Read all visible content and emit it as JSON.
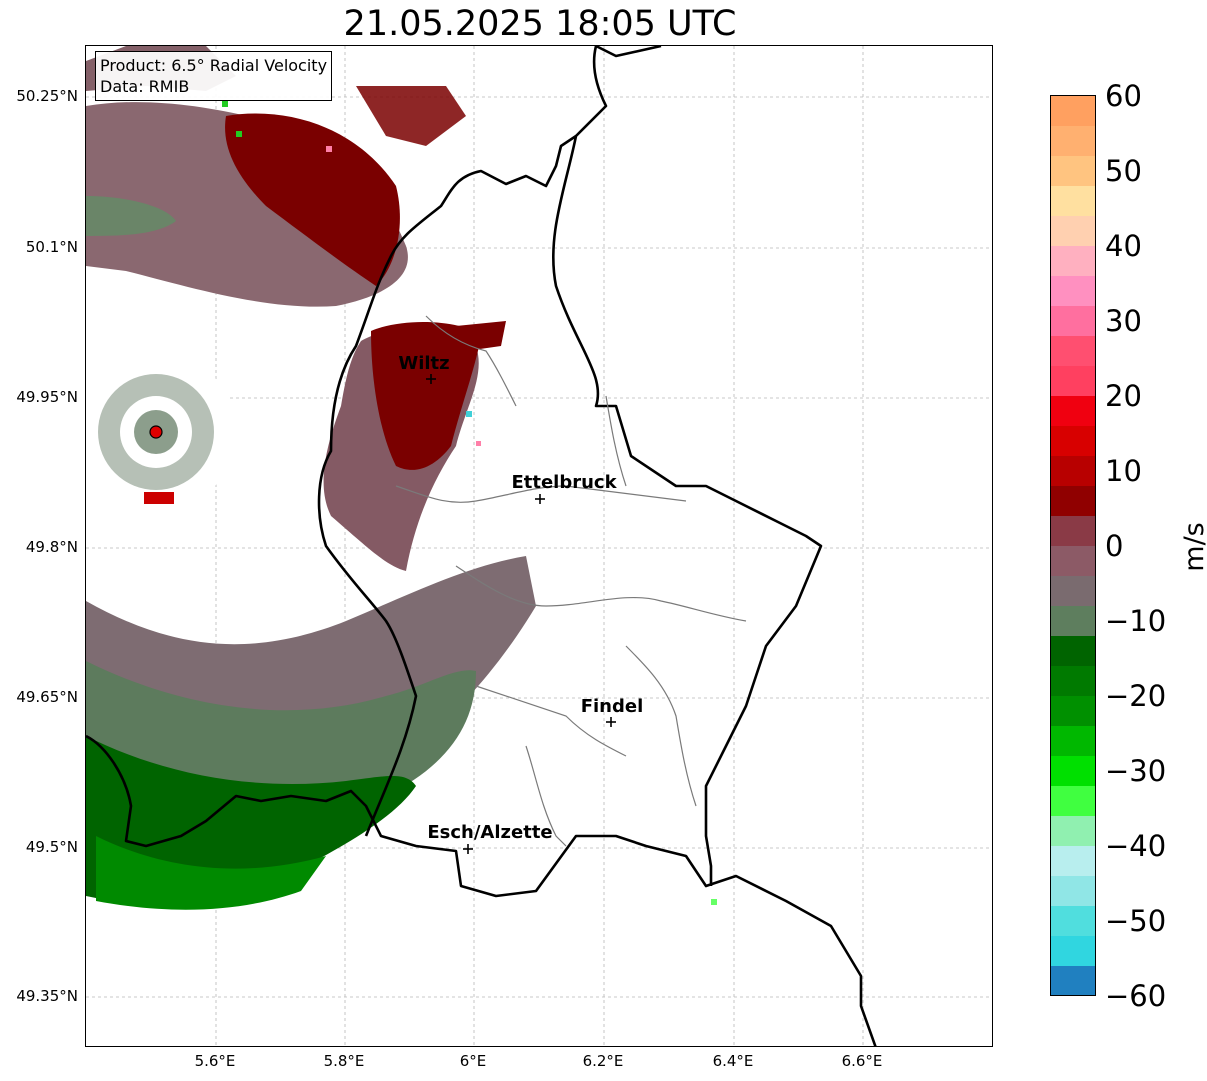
{
  "title": "21.05.2025 18:05 UTC",
  "info": {
    "product": "Product: 6.5° Radial Velocity",
    "data": "Data: RMIB"
  },
  "axes": {
    "y_ticks": [
      "50.25°N",
      "50.1°N",
      "49.95°N",
      "49.8°N",
      "49.65°N",
      "49.5°N",
      "49.35°N"
    ],
    "x_ticks": [
      "5.6°E",
      "5.8°E",
      "6°E",
      "6.2°E",
      "6.4°E",
      "6.6°E"
    ]
  },
  "cities": [
    {
      "name": "Wiltz"
    },
    {
      "name": "Ettelbruck"
    },
    {
      "name": "Findel"
    },
    {
      "name": "Esch/Alzette"
    }
  ],
  "colorbar": {
    "unit": "m/s",
    "ticks": [
      "60",
      "50",
      "40",
      "30",
      "20",
      "10",
      "0",
      "−10",
      "−20",
      "−30",
      "−40",
      "−50",
      "−60"
    ],
    "range": [
      -60,
      60
    ]
  },
  "colors": {
    "strong_inbound": "#006400",
    "weak_inbound": "#5b7f5b",
    "near_zero": "#8a6a72",
    "weak_outbound": "#7d2a33",
    "strong_outbound": "#7a0000",
    "radar_marker": "#e00000"
  },
  "icons": {
    "radar_site": "red-dot-icon",
    "city_marker": "plus-icon"
  }
}
